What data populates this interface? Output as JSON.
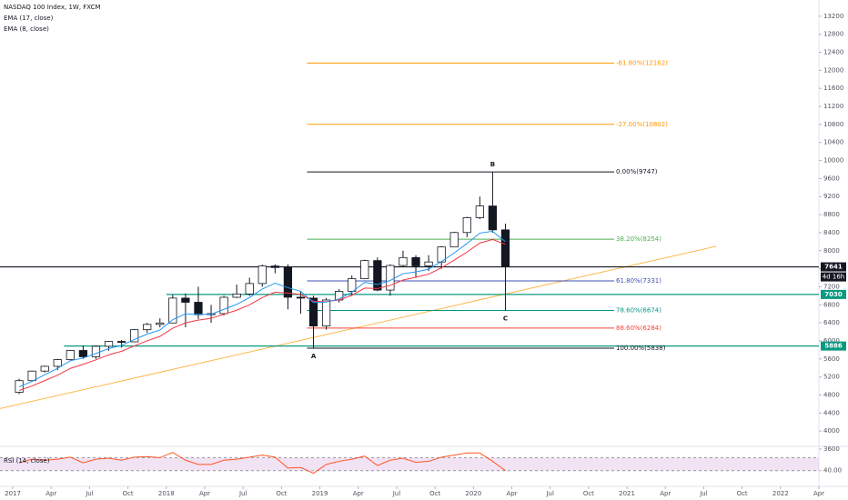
{
  "chart_data": [
    {
      "type": "candlestick",
      "title": "NASDAQ 100 Index, 1W, FXCM",
      "x": [
        "2017-01",
        "2017-02",
        "2017-03",
        "2017-04",
        "2017-05",
        "2017-06",
        "2017-07",
        "2017-08",
        "2017-09",
        "2017-10",
        "2017-11",
        "2017-12",
        "2018-01",
        "2018-02",
        "2018-03",
        "2018-04",
        "2018-05",
        "2018-06",
        "2018-07",
        "2018-08",
        "2018-09",
        "2018-10",
        "2018-11",
        "2018-12",
        "2019-01",
        "2019-02",
        "2019-03",
        "2019-04",
        "2019-05",
        "2019-06",
        "2019-07",
        "2019-08",
        "2019-09",
        "2019-10",
        "2019-11",
        "2019-12",
        "2020-01",
        "2020-02",
        "2020-03"
      ],
      "open": [
        4860,
        5118,
        5330,
        5436,
        5584,
        5788,
        5647,
        5880,
        5988,
        5979,
        6248,
        6365,
        6397,
        6949,
        6856,
        6581,
        6605,
        6967,
        7040,
        7272,
        7660,
        7627,
        6968,
        6949,
        6330,
        6907,
        7099,
        7378,
        7781,
        7127,
        7672,
        7848,
        7663,
        7750,
        8083,
        8403,
        8733,
        8991,
        8462
      ],
      "high": [
        5160,
        5340,
        5450,
        5600,
        5800,
        5900,
        5900,
        6000,
        6020,
        6260,
        6400,
        6500,
        7020,
        7050,
        7200,
        6800,
        7000,
        7250,
        7400,
        7690,
        7700,
        7700,
        7100,
        7000,
        6950,
        7150,
        7450,
        7800,
        7850,
        7700,
        8000,
        7900,
        7900,
        8100,
        8420,
        8750,
        9200,
        9747,
        8600
      ],
      "low": [
        4820,
        5100,
        5300,
        5350,
        5560,
        5600,
        5600,
        5780,
        5850,
        5970,
        6180,
        6300,
        6390,
        6300,
        6480,
        6400,
        6560,
        6950,
        7000,
        7200,
        7500,
        6700,
        6600,
        5838,
        6250,
        6850,
        7000,
        7370,
        7100,
        7000,
        7650,
        7400,
        7550,
        7600,
        8080,
        8300,
        8700,
        8400,
        6674
      ],
      "close": [
        5118,
        5330,
        5436,
        5584,
        5788,
        5647,
        5880,
        5988,
        5979,
        6248,
        6365,
        6397,
        6949,
        6856,
        6581,
        6605,
        6967,
        7040,
        7272,
        7660,
        7627,
        6968,
        6949,
        6330,
        6907,
        7099,
        7378,
        7781,
        7127,
        7672,
        7848,
        7663,
        7750,
        8083,
        8403,
        8733,
        8991,
        8462,
        7641
      ],
      "up_color": "#ffffff",
      "down_color": "#131722",
      "series": [
        {
          "name": "EMA (17, close)",
          "color": "#f23645",
          "values": [
            4900,
            5000,
            5120,
            5240,
            5390,
            5480,
            5580,
            5690,
            5770,
            5890,
            6000,
            6100,
            6280,
            6400,
            6460,
            6500,
            6590,
            6680,
            6800,
            6960,
            7080,
            7060,
            7030,
            6880,
            6870,
            6910,
            7010,
            7170,
            7160,
            7230,
            7350,
            7410,
            7480,
            7620,
            7790,
            7970,
            8170,
            8250,
            8140
          ]
        },
        {
          "name": "EMA (8, close)",
          "color": "#2196f3",
          "values": [
            4980,
            5100,
            5250,
            5390,
            5560,
            5620,
            5720,
            5830,
            5900,
            6030,
            6150,
            6240,
            6470,
            6600,
            6590,
            6590,
            6700,
            6810,
            6960,
            7150,
            7280,
            7180,
            7100,
            6850,
            6860,
            6930,
            7080,
            7300,
            7250,
            7340,
            7490,
            7530,
            7590,
            7760,
            7950,
            8160,
            8390,
            8430,
            8200
          ]
        }
      ],
      "xlim": [
        "2016-12",
        "2022-04"
      ],
      "xticks": [
        {
          "value": "2017-01",
          "label": "2017"
        },
        {
          "value": "2017-04",
          "label": "Apr"
        },
        {
          "value": "2017-07",
          "label": "Jul"
        },
        {
          "value": "2017-10",
          "label": "Oct"
        },
        {
          "value": "2018-01",
          "label": "2018"
        },
        {
          "value": "2018-04",
          "label": "Apr"
        },
        {
          "value": "2018-07",
          "label": "Jul"
        },
        {
          "value": "2018-10",
          "label": "Oct"
        },
        {
          "value": "2019-01",
          "label": "2019"
        },
        {
          "value": "2019-04",
          "label": "Apr"
        },
        {
          "value": "2019-07",
          "label": "Jul"
        },
        {
          "value": "2019-10",
          "label": "Oct"
        },
        {
          "value": "2020-01",
          "label": "2020"
        },
        {
          "value": "2020-04",
          "label": "Apr"
        },
        {
          "value": "2020-07",
          "label": "Jul"
        },
        {
          "value": "2020-10",
          "label": "Oct"
        },
        {
          "value": "2021-01",
          "label": "2021"
        },
        {
          "value": "2021-04",
          "label": "Apr"
        },
        {
          "value": "2021-07",
          "label": "Jul"
        },
        {
          "value": "2021-10",
          "label": "Oct"
        },
        {
          "value": "2022-01",
          "label": "2022"
        },
        {
          "value": "2022-04",
          "label": "Apr"
        }
      ],
      "ylim": [
        3600,
        13560
      ],
      "yticks": [
        3600,
        4000,
        4400,
        4800,
        5200,
        5600,
        6000,
        6400,
        6800,
        7200,
        7600,
        8000,
        8400,
        8800,
        9200,
        9600,
        10000,
        10400,
        10800,
        11200,
        11600,
        12000,
        12400,
        12800,
        13200
      ],
      "fib_range": [
        "2018-12",
        "2020-12"
      ],
      "fib_levels": [
        {
          "label": "-61.80%(12162)",
          "value": 12162,
          "color": "#ff9800"
        },
        {
          "label": "-27.00%(10802)",
          "value": 10802,
          "color": "#ff9800"
        },
        {
          "label": "0.00%(9747)",
          "value": 9747,
          "color": "#131722"
        },
        {
          "label": "38.20%(8254)",
          "value": 8254,
          "color": "#4caf50"
        },
        {
          "label": "61.80%(7331)",
          "value": 7331,
          "color": "#3f51b5"
        },
        {
          "label": "78.60%(6674)",
          "value": 6674,
          "color": "#009688"
        },
        {
          "label": "88.60%(6284)",
          "value": 6284,
          "color": "#f44336"
        },
        {
          "label": "100.00%(5838)",
          "value": 5838,
          "color": "#131722"
        }
      ],
      "price_lines": [
        {
          "label": "7641",
          "value": 7641,
          "from": "2016-12",
          "color": "#131722",
          "note": "4d 16h"
        },
        {
          "label": "7030",
          "value": 7030,
          "from": "2018-01",
          "color": "#089981"
        },
        {
          "label": "5886",
          "value": 5886,
          "from": "2017-05",
          "color": "#089981"
        }
      ],
      "trendline": {
        "color": "#ffb74d",
        "x": [
          "2016-12",
          "2021-08"
        ],
        "values": [
          4500,
          8100
        ]
      },
      "points": [
        {
          "label": "A",
          "x": "2018-12",
          "value": 5838
        },
        {
          "label": "B",
          "x": "2020-02",
          "value": 9747
        },
        {
          "label": "C",
          "x": "2020-03",
          "value": 6674
        }
      ]
    },
    {
      "type": "rsi",
      "title": "RSI (14, close)",
      "color": "#ff5722",
      "values": [
        55,
        62,
        60,
        62,
        66,
        55,
        62,
        64,
        60,
        66,
        67,
        65,
        75,
        60,
        52,
        52,
        60,
        62,
        66,
        70,
        66,
        45,
        46,
        35,
        52,
        58,
        62,
        68,
        50,
        60,
        64,
        56,
        58,
        66,
        70,
        74,
        74,
        58,
        40
      ],
      "ylim": [
        15,
        85
      ],
      "band": [
        40,
        65
      ],
      "yticks": [
        {
          "value": 40,
          "label": "40.00"
        }
      ]
    }
  ]
}
